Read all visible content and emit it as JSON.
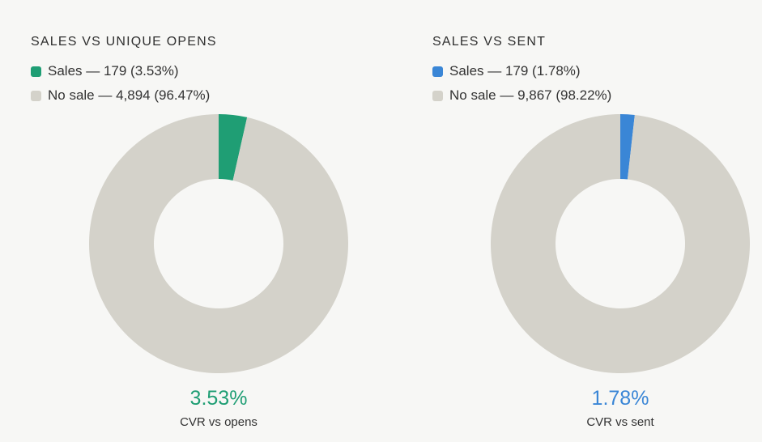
{
  "chart_data": [
    {
      "type": "pie",
      "title": "SALES VS UNIQUE OPENS",
      "slices": [
        {
          "label": "Sales",
          "value": 179,
          "percent": 3.53,
          "legend_text": "Sales — 179 (3.53%)",
          "color": "#1f9e74"
        },
        {
          "label": "No sale",
          "value": 4894,
          "percent": 96.47,
          "legend_text": "No sale — 4,894 (96.47%)",
          "color": "#d4d2ca"
        }
      ],
      "donut": true,
      "center_value": "3.53%",
      "center_value_color": "#1f9e74",
      "caption": "CVR vs opens"
    },
    {
      "type": "pie",
      "title": "SALES VS SENT",
      "slices": [
        {
          "label": "Sales",
          "value": 179,
          "percent": 1.78,
          "legend_text": "Sales — 179 (1.78%)",
          "color": "#3a86d6"
        },
        {
          "label": "No sale",
          "value": 9867,
          "percent": 98.22,
          "legend_text": "No sale — 9,867 (98.22%)",
          "color": "#d4d2ca"
        }
      ],
      "donut": true,
      "center_value": "1.78%",
      "center_value_color": "#3a86d6",
      "caption": "CVR vs sent"
    }
  ]
}
